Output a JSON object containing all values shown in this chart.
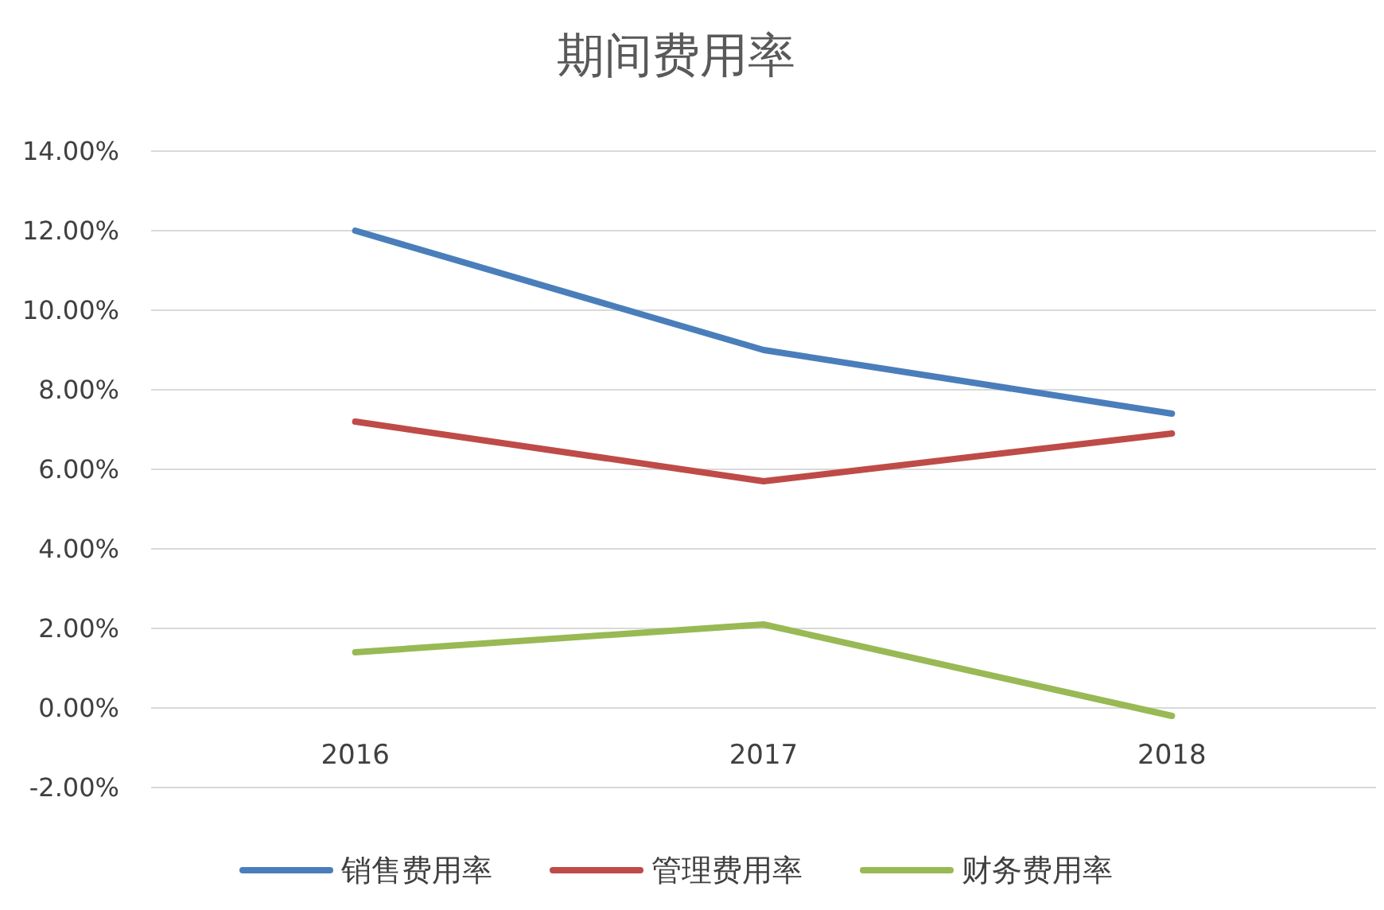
{
  "chart_data": {
    "type": "line",
    "title": "期间费用率",
    "categories": [
      "2016",
      "2017",
      "2018"
    ],
    "series": [
      {
        "name": "销售费用率",
        "color": "#4a7ebb",
        "values": [
          12.0,
          9.0,
          7.4
        ]
      },
      {
        "name": "管理费用率",
        "color": "#be4b48",
        "values": [
          7.2,
          5.7,
          6.9
        ]
      },
      {
        "name": "财务费用率",
        "color": "#98b954",
        "values": [
          1.4,
          2.1,
          -0.2
        ]
      }
    ],
    "ylim": [
      -2,
      14
    ],
    "yticks": [
      {
        "value": -2,
        "label": "-2.00%"
      },
      {
        "value": 0,
        "label": "0.00%"
      },
      {
        "value": 2,
        "label": "2.00%"
      },
      {
        "value": 4,
        "label": "4.00%"
      },
      {
        "value": 6,
        "label": "6.00%"
      },
      {
        "value": 8,
        "label": "8.00%"
      },
      {
        "value": 10,
        "label": "10.00%"
      },
      {
        "value": 12,
        "label": "12.00%"
      },
      {
        "value": 14,
        "label": "14.00%"
      }
    ],
    "grid": "y",
    "legend": "bottom",
    "marker": "none",
    "line_style": "solid"
  }
}
